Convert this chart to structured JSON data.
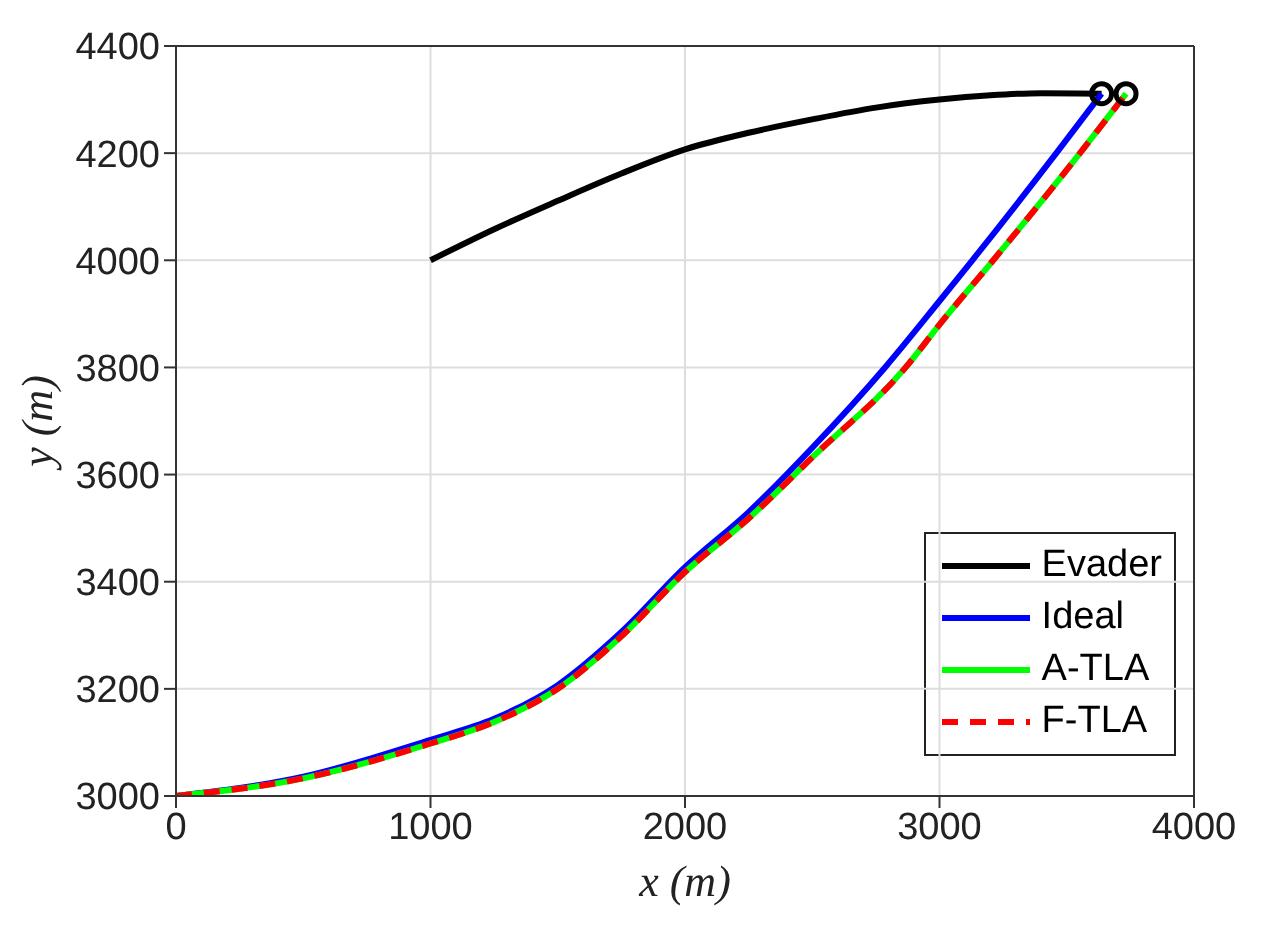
{
  "chart_data": {
    "type": "line",
    "xlabel": "x (m)",
    "ylabel": "y (m)",
    "xlim": [
      0,
      4000
    ],
    "xticks": [
      0,
      1000,
      2000,
      3000,
      4000
    ],
    "ylim": [
      3000,
      4400
    ],
    "yticks": [
      3000,
      3200,
      3400,
      3600,
      3800,
      4000,
      4200,
      4400
    ],
    "grid": true,
    "legend": "bottom right",
    "series": [
      {
        "name": "Evader",
        "color": "#000000",
        "line_style": "solid",
        "x": [
          1000,
          1250,
          1500,
          1750,
          2000,
          2250,
          2500,
          2750,
          3000,
          3200,
          3400,
          3637
        ],
        "values": [
          4000,
          4058,
          4111,
          4162,
          4207,
          4238,
          4263,
          4285,
          4300,
          4308,
          4312,
          4311
        ]
      },
      {
        "name": "Ideal",
        "color": "#0000ff",
        "line_style": "solid",
        "x": [
          0,
          500,
          1000,
          1250,
          1500,
          1750,
          2000,
          2250,
          2500,
          2786,
          3000,
          3129,
          3459,
          3637
        ],
        "values": [
          3000,
          3036,
          3105,
          3144,
          3207,
          3306,
          3427,
          3530,
          3650,
          3800,
          3924,
          4000,
          4200,
          4311
        ]
      },
      {
        "name": "A-TLA",
        "color": "#00ff00",
        "line_style": "solid",
        "x": [
          0,
          500,
          1000,
          1250,
          1500,
          1750,
          2000,
          2250,
          2500,
          2867,
          3000,
          3211,
          3552,
          3733
        ],
        "values": [
          3000,
          3033,
          3098,
          3138,
          3200,
          3298,
          3418,
          3518,
          3632,
          3800,
          3880,
          4000,
          4200,
          4311
        ]
      },
      {
        "name": "F-TLA",
        "color": "#ff0000",
        "line_style": "dashed",
        "x": [
          0,
          500,
          1000,
          1250,
          1500,
          1750,
          2000,
          2250,
          2500,
          2867,
          3000,
          3211,
          3552,
          3733
        ],
        "values": [
          3000,
          3033,
          3098,
          3138,
          3200,
          3298,
          3418,
          3518,
          3632,
          3800,
          3880,
          4000,
          4200,
          4311
        ]
      },
      {
        "type": "scatter",
        "color": "#000000",
        "marker": "circle",
        "x": [
          3637,
          3733
        ],
        "values": [
          4311,
          4311
        ]
      }
    ]
  }
}
